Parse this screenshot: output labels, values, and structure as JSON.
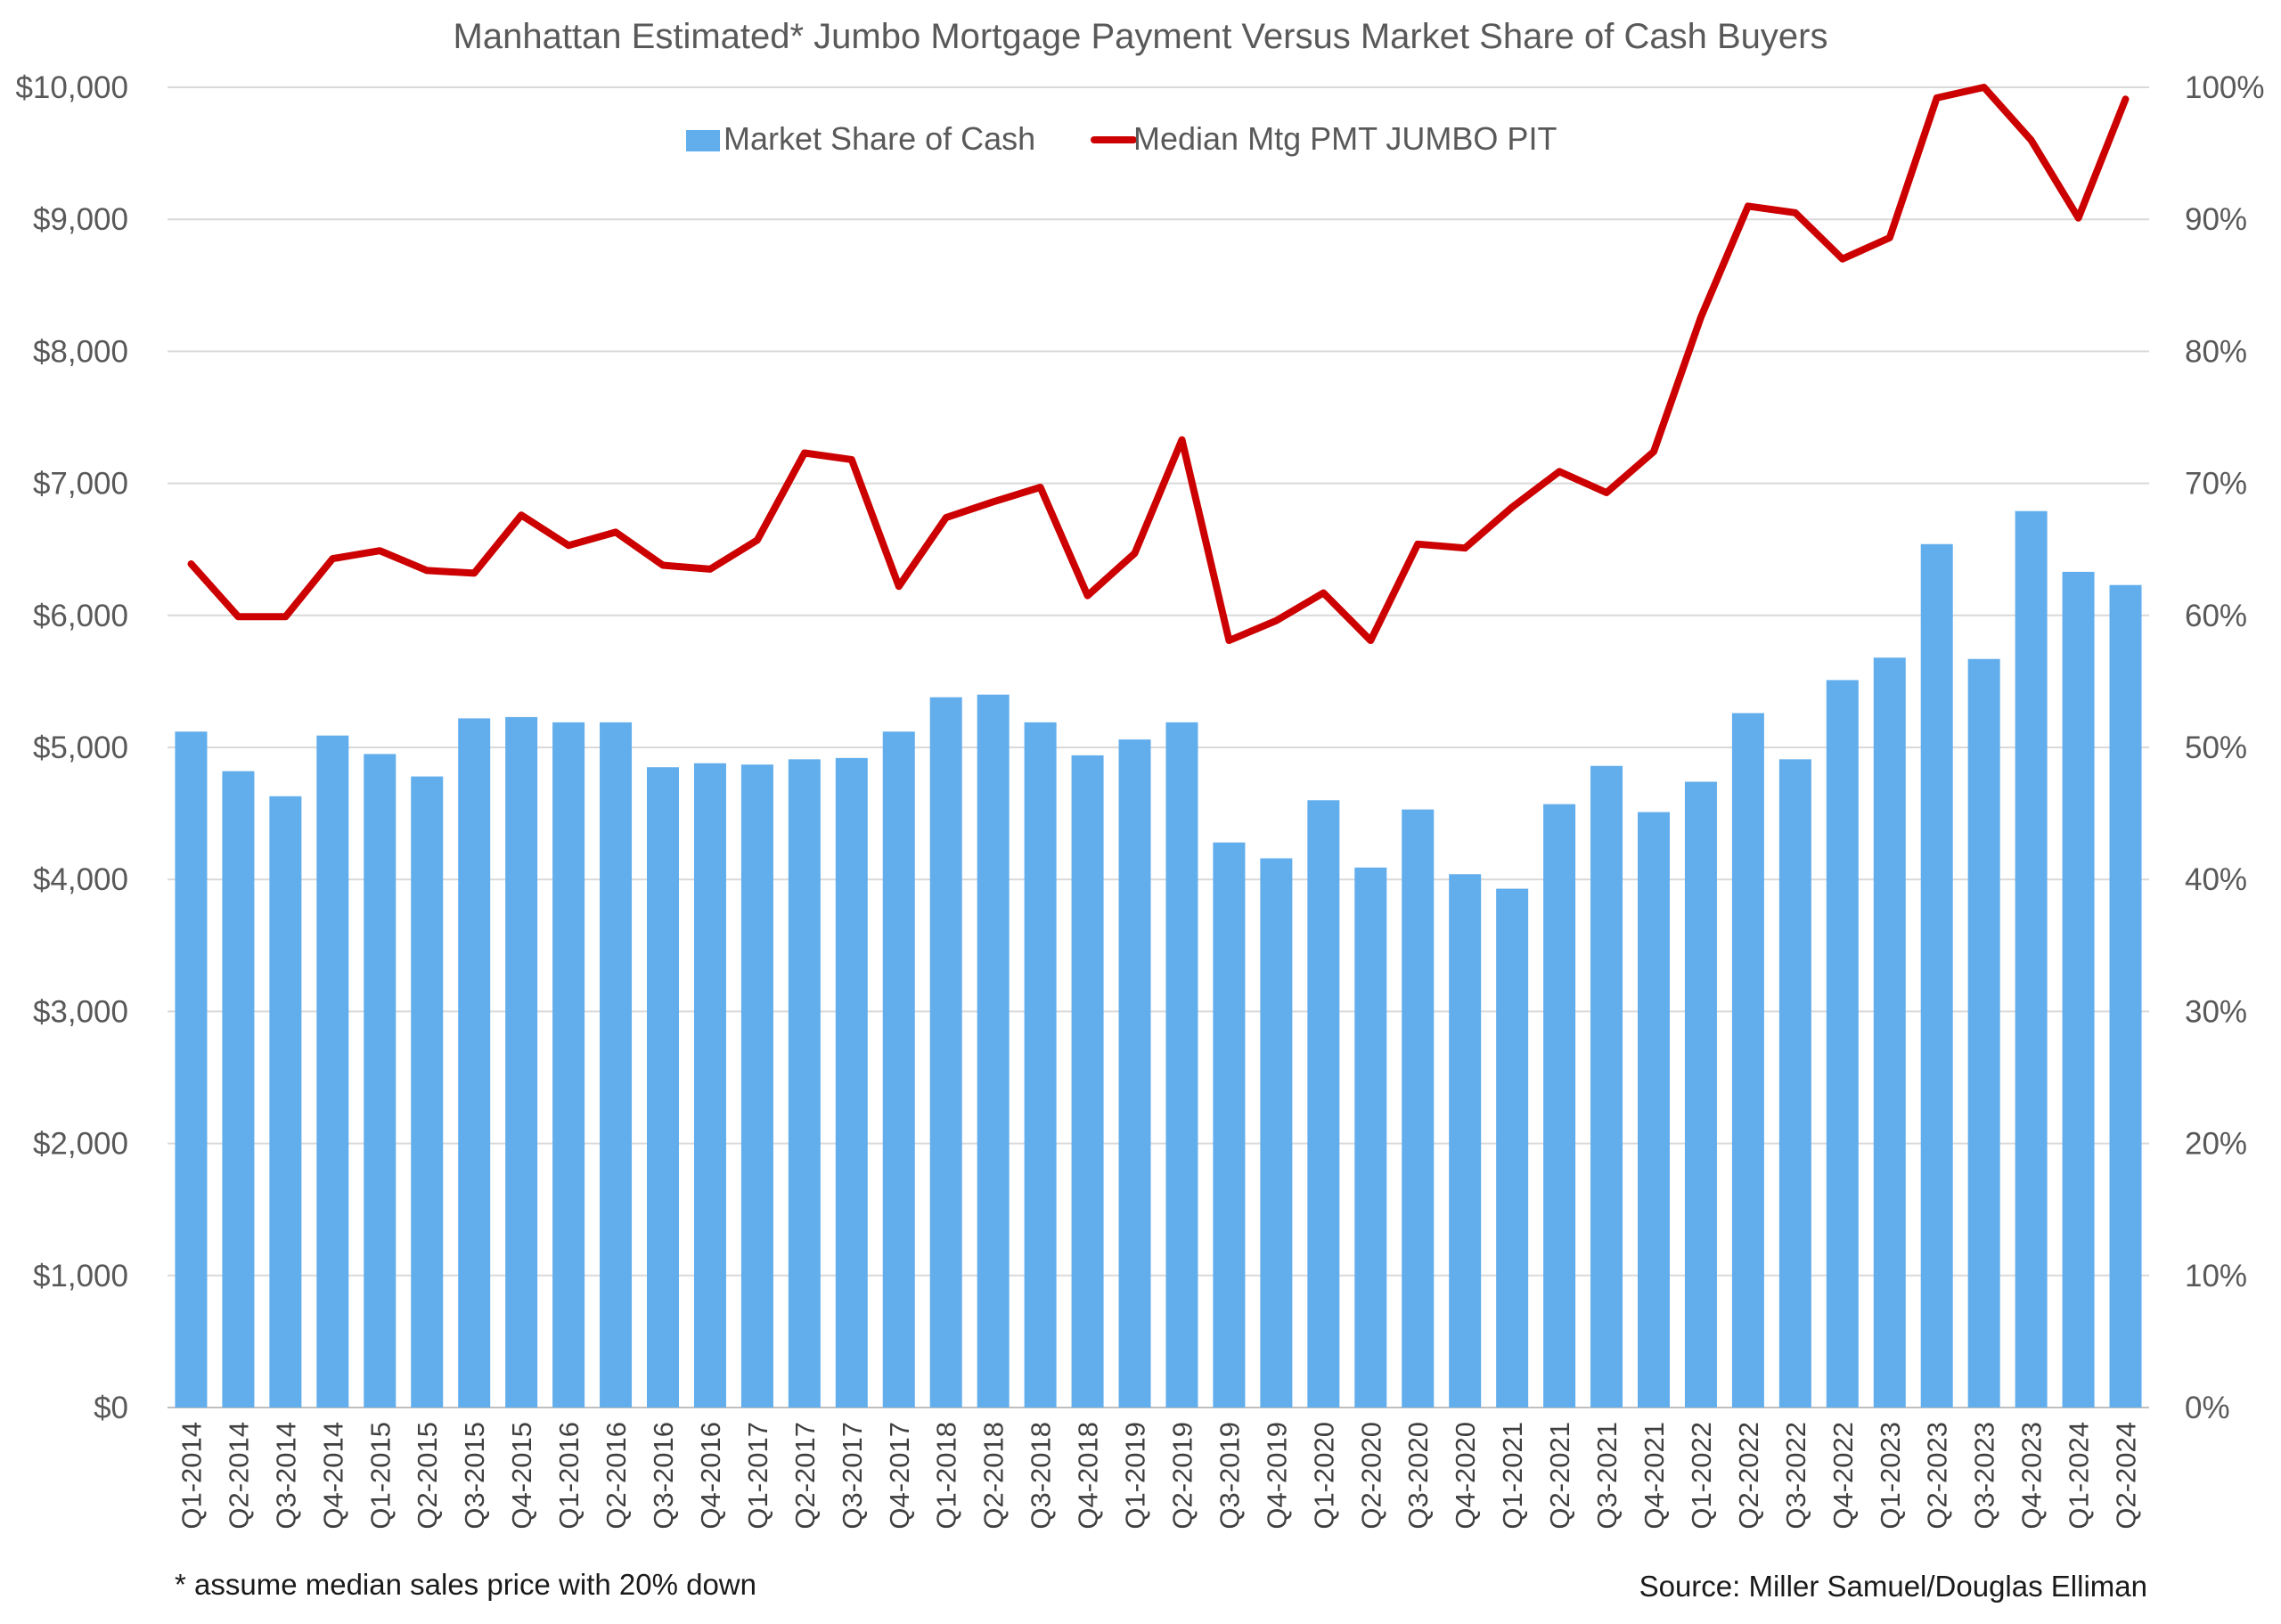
{
  "chart_data": {
    "type": "bar+line",
    "title": "Manhattan Estimated* Jumbo Mortgage Payment Versus Market Share of Cash Buyers",
    "categories": [
      "Q1-2014",
      "Q2-2014",
      "Q3-2014",
      "Q4-2014",
      "Q1-2015",
      "Q2-2015",
      "Q3-2015",
      "Q4-2015",
      "Q1-2016",
      "Q2-2016",
      "Q3-2016",
      "Q4-2016",
      "Q1-2017",
      "Q2-2017",
      "Q3-2017",
      "Q4-2017",
      "Q1-2018",
      "Q2-2018",
      "Q3-2018",
      "Q4-2018",
      "Q1-2019",
      "Q2-2019",
      "Q3-2019",
      "Q4-2019",
      "Q1-2020",
      "Q2-2020",
      "Q3-2020",
      "Q4-2020",
      "Q1-2021",
      "Q2-2021",
      "Q3-2021",
      "Q4-2021",
      "Q1-2022",
      "Q2-2022",
      "Q3-2022",
      "Q4-2022",
      "Q1-2023",
      "Q2-2023",
      "Q3-2023",
      "Q4-2023",
      "Q1-2024",
      "Q2-2024"
    ],
    "series": [
      {
        "name": "Market Share of Cash",
        "type": "bar",
        "axis": "right",
        "color": "#62aeec",
        "values": [
          51.2,
          48.2,
          46.3,
          50.9,
          49.5,
          47.8,
          52.2,
          52.3,
          51.9,
          51.9,
          48.5,
          48.8,
          48.7,
          49.1,
          49.2,
          51.2,
          53.8,
          54.0,
          51.9,
          49.4,
          50.6,
          51.9,
          42.8,
          41.6,
          46.0,
          40.9,
          45.3,
          40.4,
          39.3,
          45.7,
          48.6,
          45.1,
          47.4,
          52.6,
          49.1,
          55.1,
          56.8,
          65.4,
          56.7,
          67.9,
          63.3,
          62.3
        ]
      },
      {
        "name": "Median Mtg PMT JUMBO PIT",
        "type": "line",
        "axis": "left",
        "color": "#cc0000",
        "values": [
          6390,
          5990,
          5990,
          6430,
          6490,
          6340,
          6320,
          6760,
          6530,
          6630,
          6380,
          6350,
          6570,
          7230,
          7180,
          6220,
          6740,
          6860,
          6970,
          6150,
          6470,
          7330,
          5810,
          5960,
          6170,
          5810,
          6540,
          6510,
          6820,
          7090,
          6930,
          7240,
          8260,
          9100,
          9050,
          8700,
          8860,
          9920,
          10000,
          9600,
          9010,
          9910
        ]
      }
    ],
    "left_axis": {
      "ylim": [
        0,
        10000
      ],
      "ticks": [
        "$0",
        "$1,000",
        "$2,000",
        "$3,000",
        "$4,000",
        "$5,000",
        "$6,000",
        "$7,000",
        "$8,000",
        "$9,000",
        "$10,000"
      ]
    },
    "right_axis": {
      "ylim": [
        0,
        100
      ],
      "ticks": [
        "0%",
        "10%",
        "20%",
        "30%",
        "40%",
        "50%",
        "60%",
        "70%",
        "80%",
        "90%",
        "100%"
      ]
    },
    "grid": true,
    "legend": "top-center",
    "footnote": "* assume median sales price with 20% down",
    "source": "Source: Miller Samuel/Douglas Elliman"
  }
}
